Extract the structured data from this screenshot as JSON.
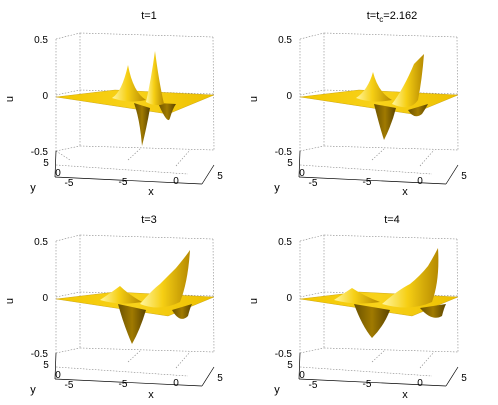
{
  "chart_data": [
    {
      "type": "surface3d",
      "title": "t=1",
      "xlabel": "x",
      "ylabel": "y",
      "zlabel": "u",
      "xticks": [
        "-5",
        "0",
        "5"
      ],
      "yticks": [
        "5",
        "0",
        "-5"
      ],
      "zticks": [
        "0.5",
        "0",
        "-0.5"
      ],
      "zlim": [
        -0.5,
        0.5
      ],
      "surface_color": "#f2c400"
    },
    {
      "type": "surface3d",
      "title_parts": {
        "base": "t=t",
        "sub": "c",
        "rest": "=2.162"
      },
      "xlabel": "x",
      "ylabel": "y",
      "zlabel": "u",
      "xticks": [
        "-5",
        "0",
        "5"
      ],
      "yticks": [
        "5",
        "0",
        "-5"
      ],
      "zticks": [
        "0.5",
        "0",
        "-0.5"
      ],
      "zlim": [
        -0.5,
        0.5
      ],
      "surface_color": "#f2c400"
    },
    {
      "type": "surface3d",
      "title": "t=3",
      "xlabel": "x",
      "ylabel": "y",
      "zlabel": "u",
      "xticks": [
        "-5",
        "0",
        "5"
      ],
      "yticks": [
        "5",
        "0",
        "-5"
      ],
      "zticks": [
        "0.5",
        "0",
        "-0.5"
      ],
      "zlim": [
        -0.5,
        0.5
      ],
      "surface_color": "#f2c400"
    },
    {
      "type": "surface3d",
      "title": "t=4",
      "xlabel": "x",
      "ylabel": "y",
      "zlabel": "u",
      "xticks": [
        "-5",
        "0",
        "5"
      ],
      "yticks": [
        "5",
        "0",
        "-5"
      ],
      "zticks": [
        "0.5",
        "0",
        "-0.5"
      ],
      "zlim": [
        -0.5,
        0.5
      ],
      "surface_color": "#f2c400"
    }
  ]
}
